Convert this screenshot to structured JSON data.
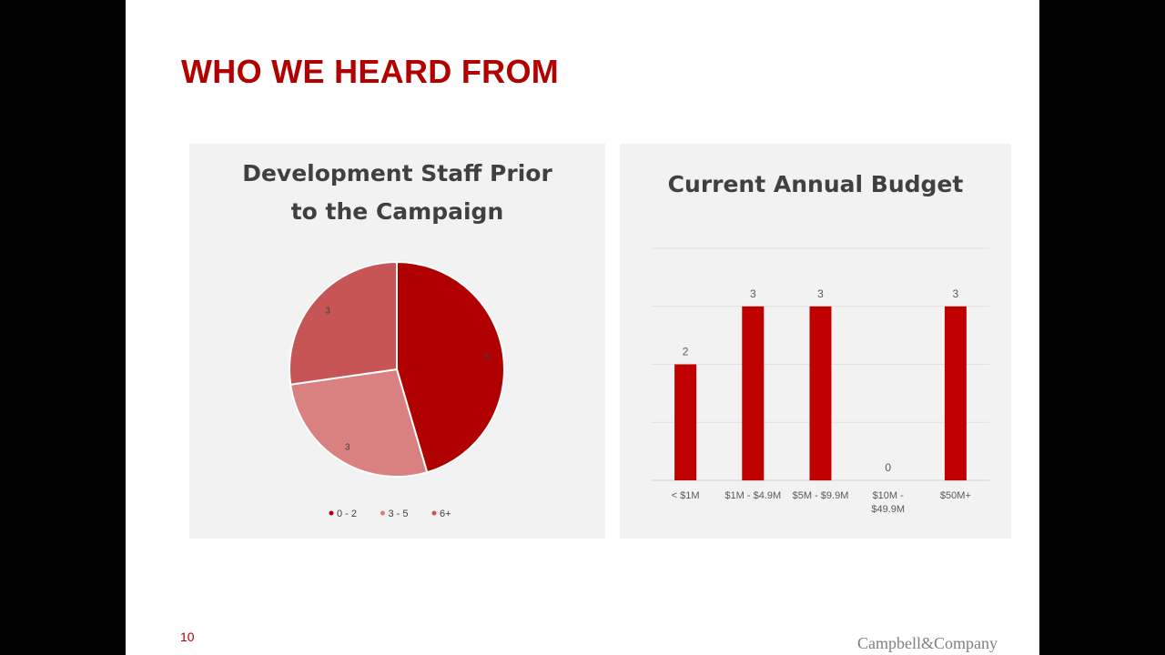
{
  "slide": {
    "title": "WHO WE HEARD FROM",
    "page_number": "10",
    "brand": "Campbell&Company"
  },
  "chart_data": [
    {
      "type": "pie",
      "title": "Development Staff Prior to the Campaign",
      "title_lines": [
        "Development Staff Prior",
        "to the Campaign"
      ],
      "categories": [
        "0 - 2",
        "3 - 5",
        "6+"
      ],
      "values": [
        5,
        3,
        3
      ],
      "colors": [
        "#b00000",
        "#d98080",
        "#c85555"
      ],
      "legend": "bottom",
      "data_labels": true
    },
    {
      "type": "bar",
      "title": "Current Annual Budget",
      "categories": [
        "< $1M",
        "$1M - $4.9M",
        "$5M - $9.9M",
        "$10M - $49.9M",
        "$50M+"
      ],
      "category_lines": [
        [
          "< $1M"
        ],
        [
          "$1M - $4.9M"
        ],
        [
          "$5M - $9.9M"
        ],
        [
          "$10M -",
          "$49.9M"
        ],
        [
          "$50M+"
        ]
      ],
      "values": [
        2,
        3,
        3,
        0,
        3
      ],
      "ylim": [
        0,
        4
      ],
      "grid": true,
      "color": "#c00000",
      "data_labels": true
    }
  ]
}
